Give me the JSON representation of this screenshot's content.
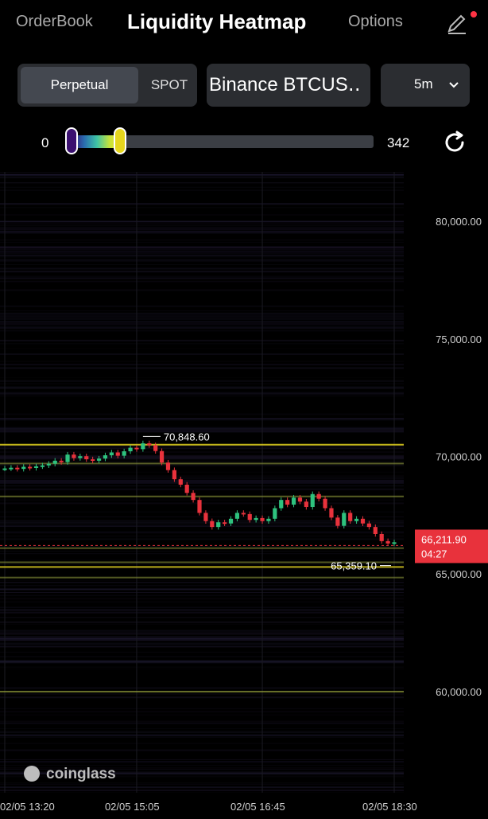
{
  "header": {
    "tab_orderbook": "OrderBook",
    "title": "Liquidity Heatmap",
    "tab_options": "Options"
  },
  "controls": {
    "market_type": {
      "selected": "Perpetual",
      "other": "SPOT"
    },
    "exchange": "Binance BTCUS‥",
    "timeframe": "5m",
    "range_min": "0",
    "range_max": "342"
  },
  "colors": {
    "background": "#000000",
    "up": "#2ec27e",
    "down": "#e8323c",
    "liquidity_high": "#e6d61d",
    "current_price_tag": "#e8323c"
  },
  "chart_data": {
    "type": "candlestick",
    "ylim": [
      55700,
      82100
    ],
    "y_ticks": [
      "80,000.00",
      "75,000.00",
      "70,000.00",
      "65,000.00",
      "60,000.00"
    ],
    "y_tick_values": [
      80000,
      75000,
      70000,
      65000,
      60000
    ],
    "x_ticks": [
      "02/05 13:20",
      "02/05 15:05",
      "02/05 16:45",
      "02/05 18:30"
    ],
    "x_tick_index": [
      0,
      21,
      41,
      62
    ],
    "annotations": {
      "high": "70,848.60",
      "high_value": 70848.6,
      "high_index": 22,
      "low": "65,359.10",
      "low_value": 65359.1,
      "low_index": 62
    },
    "current_price": {
      "price": "66,211.90",
      "countdown": "04:27",
      "value": 66211.9
    },
    "candles_close": [
      69490,
      69520,
      69470,
      69560,
      69510,
      69580,
      69620,
      69690,
      69820,
      69760,
      70080,
      69930,
      70010,
      69880,
      69820,
      69910,
      70050,
      70170,
      70030,
      70220,
      70370,
      70310,
      70560,
      70480,
      70230,
      69740,
      69420,
      69030,
      68800,
      68450,
      68150,
      67600,
      67250,
      67000,
      67200,
      67150,
      67350,
      67600,
      67550,
      67300,
      67380,
      67250,
      67350,
      67800,
      68150,
      67950,
      68250,
      68080,
      67850,
      68400,
      68200,
      67800,
      67400,
      67050,
      67600,
      67250,
      67350,
      67150,
      67000,
      66700,
      66400,
      66300,
      66350
    ],
    "liquidity_bands": [
      {
        "price": 70500,
        "strength": 1.0
      },
      {
        "price": 69700,
        "strength": 0.6
      },
      {
        "price": 68300,
        "strength": 0.6
      },
      {
        "price": 66100,
        "strength": 0.5
      },
      {
        "price": 65500,
        "strength": 0.5
      },
      {
        "price": 65300,
        "strength": 0.9
      },
      {
        "price": 64850,
        "strength": 0.5
      },
      {
        "price": 60000,
        "strength": 0.8
      }
    ],
    "brand": "coinglass"
  }
}
